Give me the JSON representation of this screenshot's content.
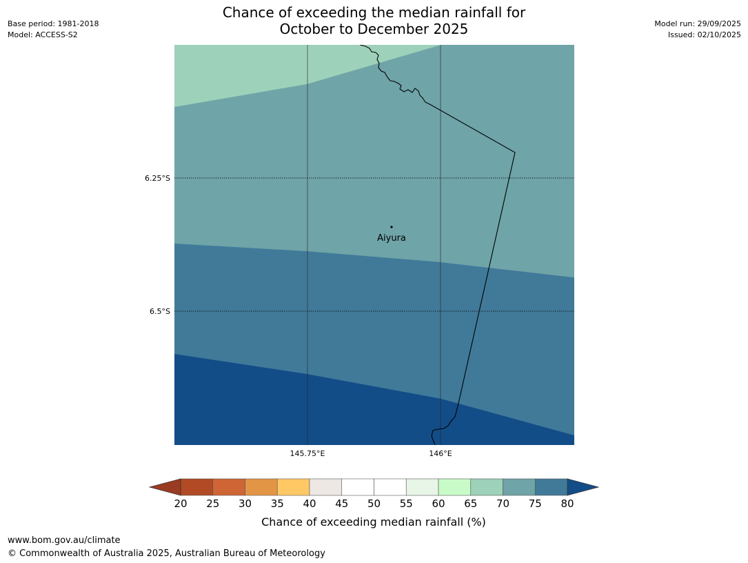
{
  "title": {
    "line1": "Chance of exceeding the median rainfall for",
    "line2": "October to December 2025"
  },
  "meta": {
    "base_period": "Base period: 1981-2018",
    "model": "Model: ACCESS-S2",
    "model_run": "Model run: 29/09/2025",
    "issued": "Issued: 02/10/2025"
  },
  "map": {
    "longitude_ticks": [
      {
        "value": 145.75,
        "label": "145.75°E"
      },
      {
        "value": 146.0,
        "label": "146°E"
      }
    ],
    "latitude_ticks": [
      {
        "value": -6.25,
        "label": "6.25°S"
      },
      {
        "value": -6.5,
        "label": "6.5°S"
      }
    ],
    "place": {
      "name": "Aiyura",
      "lat": -6.34,
      "lon": 145.906
    },
    "zones": [
      {
        "band": "65-70",
        "color": "#9dd1b9"
      },
      {
        "band": "70-75",
        "color": "#6fa4a8"
      },
      {
        "band": "75-80",
        "color": "#417a99"
      },
      {
        "band": ">80",
        "color": "#134d88"
      }
    ]
  },
  "colorbar": {
    "label": "Chance of exceeding median rainfall (%)",
    "ticks": [
      "20",
      "25",
      "30",
      "35",
      "40",
      "45",
      "50",
      "55",
      "60",
      "65",
      "70",
      "75",
      "80"
    ],
    "under_color": "#9a3c22",
    "over_color": "#134d88",
    "colors": [
      "#b14a25",
      "#cf6534",
      "#e29545",
      "#ffc864",
      "#ede8e3",
      "#ffffff",
      "#ffffff",
      "#e8f6e8",
      "#c9fbc9",
      "#9dd1b9",
      "#6fa4a8",
      "#417a99"
    ]
  },
  "footer": {
    "url": "www.bom.gov.au/climate",
    "copyright": "© Commonwealth of Australia 2025, Australian Bureau of Meteorology"
  }
}
